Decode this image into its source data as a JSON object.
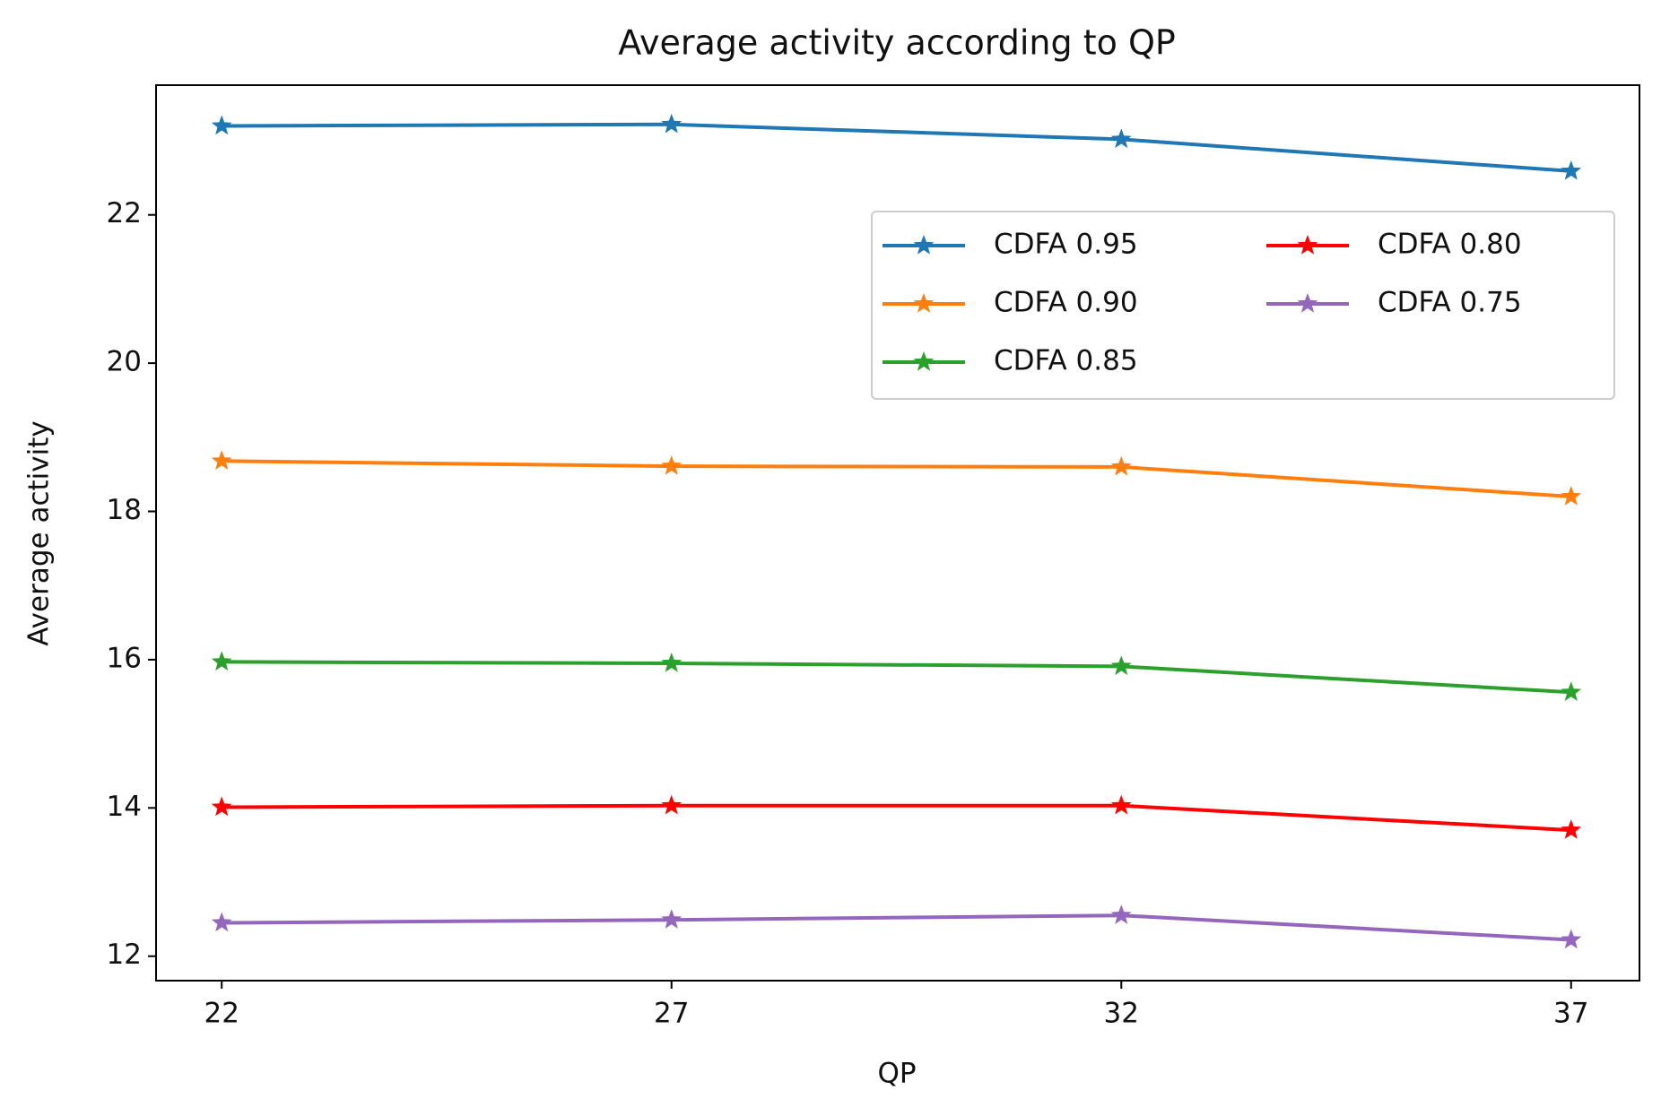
{
  "chart_data": {
    "type": "line",
    "title": "Average activity according to QP",
    "x_label": "QP",
    "y_label": "Average activity",
    "x": [
      22,
      27,
      32,
      37
    ],
    "series": [
      {
        "name": "CDFA 0.95",
        "color": "#1f77b4",
        "values": [
          23.2,
          23.22,
          23.02,
          22.59
        ]
      },
      {
        "name": "CDFA 0.90",
        "color": "#ff7f0e",
        "values": [
          18.68,
          18.61,
          18.6,
          18.2
        ]
      },
      {
        "name": "CDFA 0.85",
        "color": "#2ca02c",
        "values": [
          15.97,
          15.95,
          15.91,
          15.56
        ]
      },
      {
        "name": "CDFA 0.80",
        "color": "#ff0000",
        "values": [
          14.01,
          14.03,
          14.03,
          13.7
        ]
      },
      {
        "name": "CDFA 0.75",
        "color": "#9467bd",
        "values": [
          12.45,
          12.49,
          12.55,
          12.22
        ]
      }
    ],
    "xlim": [
      21.27,
      37.76
    ],
    "xticks": [
      22,
      27,
      32,
      37
    ],
    "ylim": [
      11.67,
      23.75
    ],
    "yticks": [
      12,
      14,
      16,
      18,
      20,
      22
    ],
    "grid": false,
    "legend": "upper right",
    "legend_columns": 2,
    "marker": "star"
  }
}
